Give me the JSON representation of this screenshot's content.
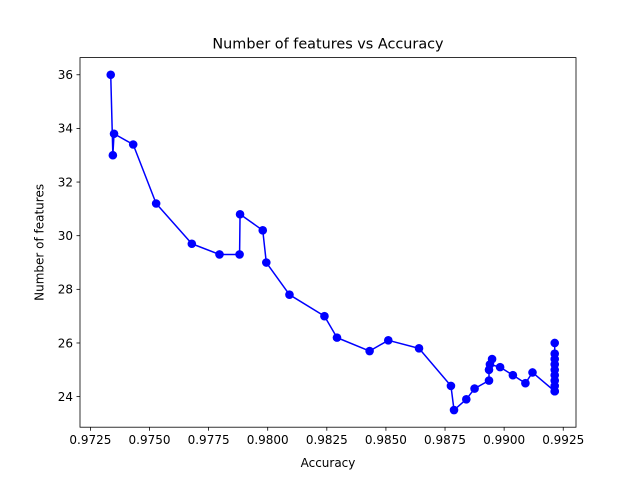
{
  "chart_data": {
    "type": "line",
    "title": "Number of features vs Accuracy",
    "xlabel": "Accuracy",
    "ylabel": "Number of features",
    "xlim": [
      0.97206,
      0.99304
    ],
    "ylim": [
      22.86,
      36.64
    ],
    "xticks": [
      0.9725,
      0.975,
      0.9775,
      0.98,
      0.9825,
      0.985,
      0.9875,
      0.99,
      0.9925
    ],
    "xtick_labels": [
      "0.9725",
      "0.9750",
      "0.9775",
      "0.9800",
      "0.9825",
      "0.9850",
      "0.9875",
      "0.9900",
      "0.9925"
    ],
    "yticks": [
      24,
      26,
      28,
      30,
      32,
      34,
      36
    ],
    "ytick_labels": [
      "24",
      "26",
      "28",
      "30",
      "32",
      "34",
      "36"
    ],
    "grid": false,
    "color": "#0000ff",
    "marker": "circle",
    "series": [
      {
        "x": [
          0.97336,
          0.97345,
          0.9735,
          0.97431,
          0.97528,
          0.97679,
          0.97796,
          0.97881,
          0.97883,
          0.97979,
          0.97994,
          0.98092,
          0.9824,
          0.98293,
          0.98431,
          0.9851,
          0.9864,
          0.98775,
          0.98788,
          0.9884,
          0.98875,
          0.98936,
          0.98936,
          0.98949,
          0.9894,
          0.98983,
          0.99037,
          0.9909,
          0.9912,
          0.99214,
          0.99214,
          0.99214,
          0.99214,
          0.99214,
          0.99214,
          0.99214,
          0.99214,
          0.99214,
          0.99214
        ],
        "y": [
          36.0,
          33.0,
          33.8,
          33.4,
          31.2,
          29.7,
          29.3,
          29.3,
          30.8,
          30.2,
          29.0,
          27.8,
          27.0,
          26.2,
          25.7,
          26.1,
          25.8,
          24.4,
          23.5,
          23.9,
          24.3,
          24.6,
          25.0,
          25.4,
          25.2,
          25.1,
          24.8,
          24.5,
          24.9,
          24.2,
          24.4,
          24.6,
          24.8,
          25.0,
          25.2,
          25.4,
          25.6,
          26.0,
          24.2
        ]
      }
    ]
  }
}
